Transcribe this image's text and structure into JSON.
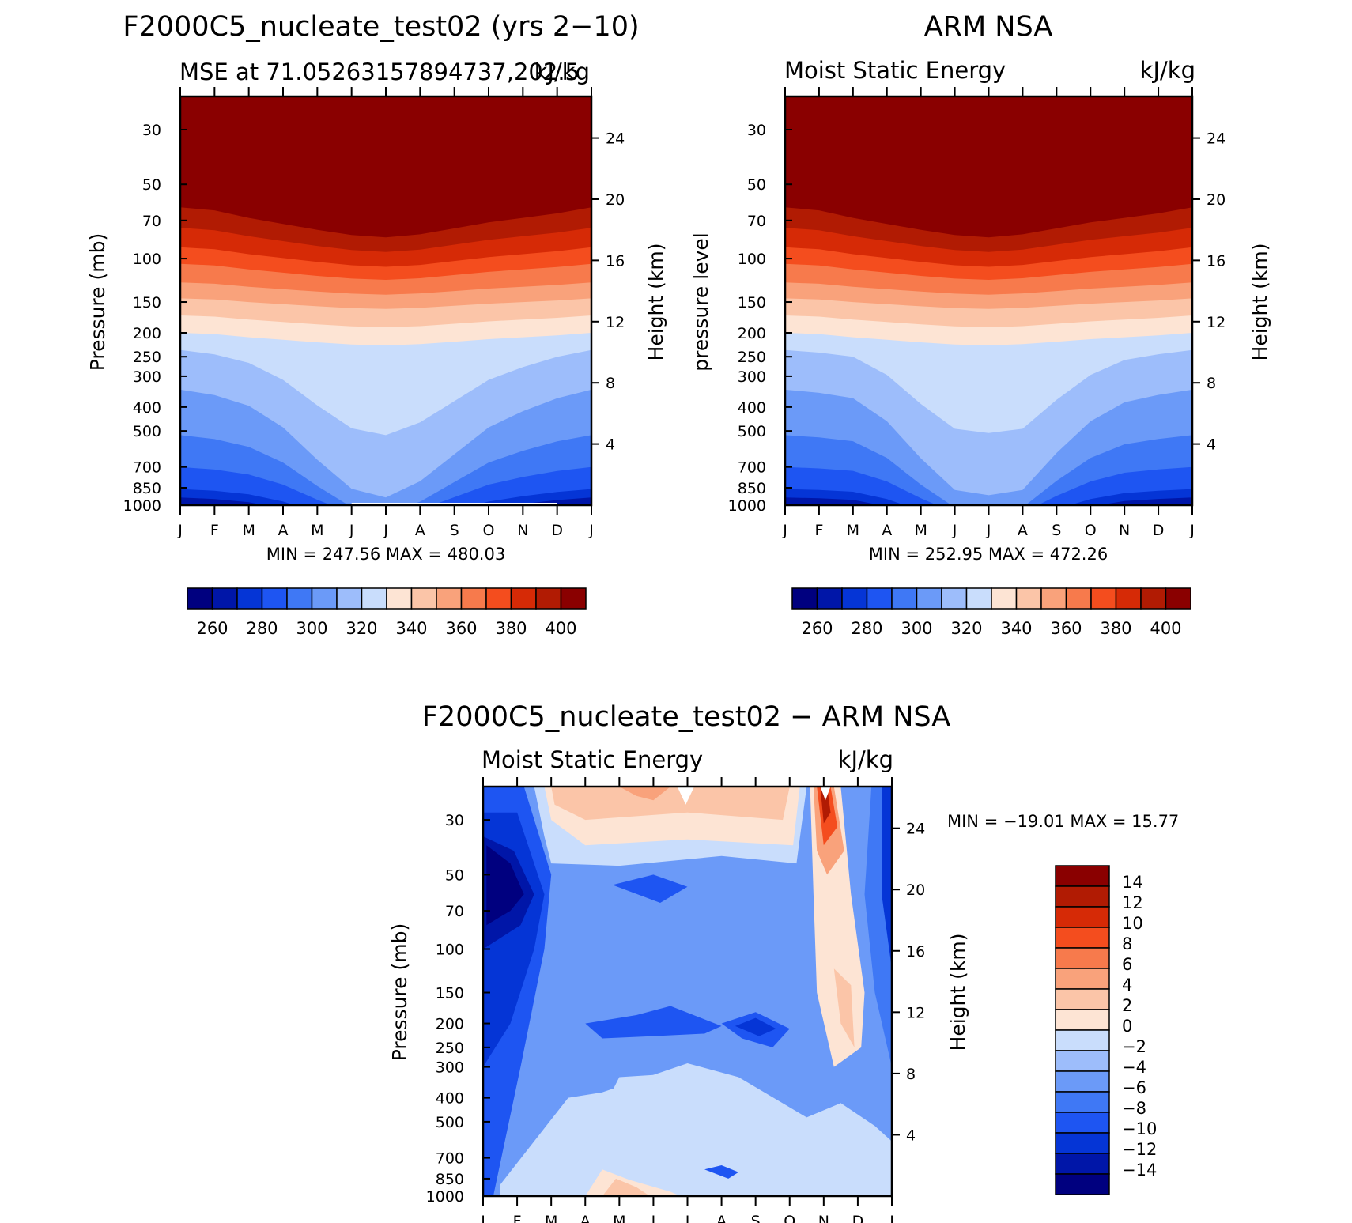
{
  "panels": [
    {
      "id": "model",
      "title": "F2000C5_nucleate_test02 (yrs 2−10)",
      "subtitle_left": "MSE at 71.05263157894737,202.5",
      "subtitle_right": "kJ/kg",
      "ylabel_left": "Pressure (mb)",
      "ylabel_right": "Height (km)",
      "minmax": "MIN = 247.56 MAX = 480.03"
    },
    {
      "id": "obs",
      "title": "ARM NSA",
      "subtitle_left": "Moist Static Energy",
      "subtitle_right": "kJ/kg",
      "ylabel_left": "pressure level",
      "ylabel_right": "Height (km)",
      "minmax": "MIN = 252.95 MAX = 472.26"
    },
    {
      "id": "diff",
      "title": "F2000C5_nucleate_test02 − ARM NSA",
      "subtitle_left": "Moist Static Energy",
      "subtitle_right": "kJ/kg",
      "ylabel_left": "Pressure (mb)",
      "ylabel_right": "Height (km)",
      "minmax": "MIN = −19.01 MAX =  15.77"
    }
  ],
  "chart_data": [
    {
      "type": "heatmap",
      "panel": "model",
      "title": "F2000C5_nucleate_test02 (yrs 2−10)",
      "subtitle": "MSE at 71.05263157894737,202.5",
      "units": "kJ/kg",
      "x": [
        "J",
        "F",
        "M",
        "A",
        "M",
        "J",
        "J",
        "A",
        "S",
        "O",
        "N",
        "D",
        "J"
      ],
      "pressure_ticks": [
        30,
        50,
        70,
        100,
        150,
        200,
        250,
        300,
        400,
        500,
        700,
        850,
        1000
      ],
      "height_ticks_km": [
        4,
        8,
        12,
        16,
        20,
        24
      ],
      "contour_levels": [
        260,
        270,
        280,
        290,
        300,
        310,
        320,
        330,
        340,
        350,
        360,
        370,
        380,
        390,
        400
      ],
      "colorbar_labels": [
        "260",
        "280",
        "300",
        "320",
        "340",
        "360",
        "380",
        "400"
      ],
      "colors": [
        "#00007f",
        "#0016a8",
        "#0535d6",
        "#1e55f2",
        "#3f78f5",
        "#6b9af8",
        "#9dbdfb",
        "#c9ddfc",
        "#fde4d4",
        "#fbc5a8",
        "#f9a27b",
        "#f77a4c",
        "#f44d1e",
        "#d62a06",
        "#b11b03",
        "#8a0000"
      ],
      "min": 247.56,
      "max": 480.03,
      "mse_profile_model": {
        "pressure": [
          1000,
          850,
          700,
          500,
          400,
          300,
          250,
          200,
          150,
          100,
          70,
          50,
          30
        ],
        "jan": [
          262,
          268,
          278,
          290,
          295,
          305,
          315,
          325,
          340,
          360,
          390,
          410,
          460
        ],
        "jul": [
          300,
          305,
          308,
          312,
          315,
          318,
          322,
          330,
          345,
          370,
          385,
          400,
          455
        ]
      }
    },
    {
      "type": "heatmap",
      "panel": "obs",
      "title": "ARM NSA",
      "subtitle": "Moist Static Energy",
      "units": "kJ/kg",
      "x": [
        "J",
        "F",
        "M",
        "A",
        "M",
        "J",
        "J",
        "A",
        "S",
        "O",
        "N",
        "D",
        "J"
      ],
      "pressure_ticks": [
        30,
        50,
        70,
        100,
        150,
        200,
        250,
        300,
        400,
        500,
        700,
        850,
        1000
      ],
      "height_ticks_km": [
        4,
        8,
        12,
        16,
        20,
        24
      ],
      "contour_levels": [
        260,
        270,
        280,
        290,
        300,
        310,
        320,
        330,
        340,
        350,
        360,
        370,
        380,
        390,
        400
      ],
      "colorbar_labels": [
        "260",
        "280",
        "300",
        "320",
        "340",
        "360",
        "380",
        "400"
      ],
      "min": 252.95,
      "max": 472.26
    },
    {
      "type": "heatmap",
      "panel": "diff",
      "title": "F2000C5_nucleate_test02 − ARM NSA",
      "subtitle": "Moist Static Energy",
      "units": "kJ/kg",
      "x": [
        "J",
        "F",
        "M",
        "A",
        "M",
        "J",
        "J",
        "A",
        "S",
        "O",
        "N",
        "D",
        "J"
      ],
      "pressure_ticks": [
        30,
        50,
        70,
        100,
        150,
        200,
        250,
        300,
        400,
        500,
        700,
        850,
        1000
      ],
      "height_ticks_km": [
        4,
        8,
        12,
        16,
        20,
        24
      ],
      "contour_levels": [
        -14,
        -12,
        -10,
        -8,
        -6,
        -4,
        -2,
        0,
        2,
        4,
        6,
        8,
        10,
        12,
        14
      ],
      "colorbar_labels": [
        "14",
        "12",
        "10",
        "8",
        "6",
        "4",
        "2",
        "0",
        "−2",
        "−4",
        "−6",
        "−8",
        "−10",
        "−12",
        "−14"
      ],
      "colors": [
        "#8a0000",
        "#b11b03",
        "#d62a06",
        "#f44d1e",
        "#f77a4c",
        "#f9a27b",
        "#fbc5a8",
        "#fde4d4",
        "#c9ddfc",
        "#9dbdfb",
        "#6b9af8",
        "#3f78f5",
        "#1e55f2",
        "#0535d6",
        "#0016a8",
        "#00007f"
      ],
      "min": -19.01,
      "max": 15.77
    }
  ],
  "x_labels": [
    "J",
    "F",
    "M",
    "A",
    "M",
    "J",
    "J",
    "A",
    "S",
    "O",
    "N",
    "D",
    "J"
  ],
  "p_labels": [
    "30",
    "50",
    "70",
    "100",
    "150",
    "200",
    "250",
    "300",
    "400",
    "500",
    "700",
    "850",
    "1000"
  ],
  "h_labels": [
    "4",
    "8",
    "12",
    "16",
    "20",
    "24"
  ]
}
